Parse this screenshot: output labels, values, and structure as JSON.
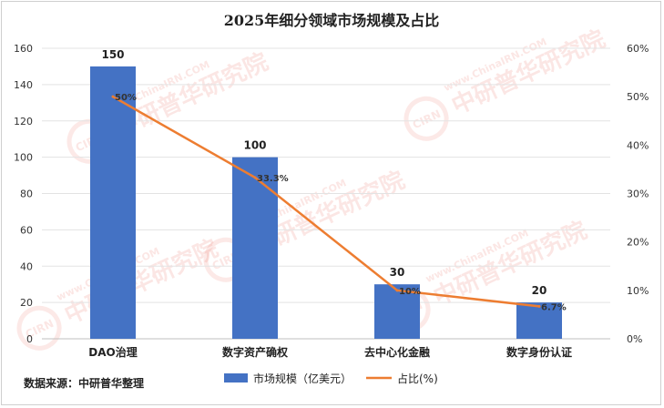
{
  "chart_data": {
    "type": "bar",
    "title": "2025年细分领域市场规模及占比",
    "categories": [
      "DAO治理",
      "数字资产确权",
      "去中心化金融",
      "数字身份认证"
    ],
    "series": [
      {
        "name": "市场规模（亿美元）",
        "type": "bar",
        "axis": "left",
        "values": [
          150,
          100,
          30,
          20
        ],
        "labels": [
          "150",
          "100",
          "30",
          "20"
        ],
        "color": "#4472c4"
      },
      {
        "name": "占比(%)",
        "type": "line",
        "axis": "right",
        "values": [
          50,
          33.3,
          10,
          6.7
        ],
        "labels": [
          "50%",
          "33.3%",
          "10%",
          "6.7%"
        ],
        "color": "#ed7d31"
      }
    ],
    "ylim": [
      0,
      160
    ],
    "yticks": [
      "0",
      "20",
      "40",
      "60",
      "80",
      "100",
      "120",
      "140",
      "160"
    ],
    "y2lim": [
      0,
      60
    ],
    "y2ticks": [
      "0%",
      "10%",
      "20%",
      "30%",
      "40%",
      "50%",
      "60%"
    ],
    "grid": true,
    "legend_position": "bottom"
  },
  "source": "数据来源：中研普华整理",
  "watermark": {
    "cn": "中研普华研究院",
    "en": "www.ChinaIRN.COM",
    "logo": "CIRN",
    "color": "#e84a3a"
  }
}
